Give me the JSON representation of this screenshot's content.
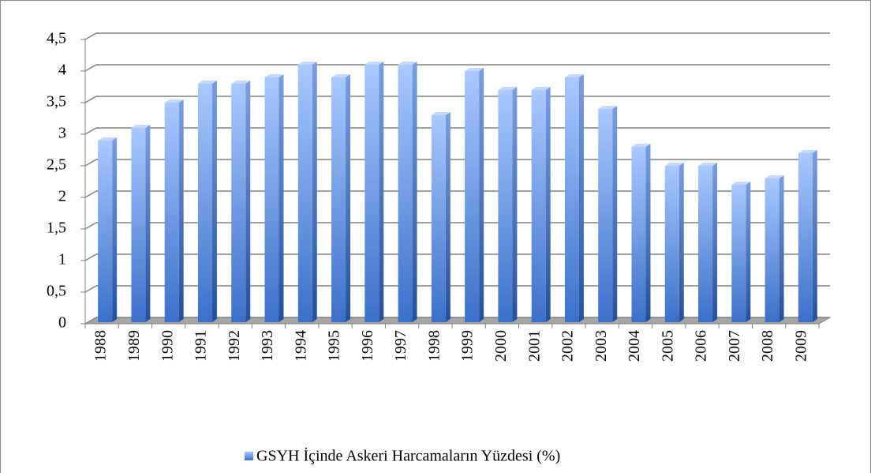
{
  "chart_data": {
    "type": "bar",
    "categories": [
      "1988",
      "1989",
      "1990",
      "1991",
      "1992",
      "1993",
      "1994",
      "1995",
      "1996",
      "1997",
      "1998",
      "1999",
      "2000",
      "2001",
      "2002",
      "2003",
      "2004",
      "2005",
      "2006",
      "2007",
      "2008",
      "2009"
    ],
    "series": [
      {
        "name": "GSYH İçinde Askeri Harcamaların Yüzdesi (%)",
        "color": "#4f86dc",
        "values": [
          2.9,
          3.1,
          3.5,
          3.8,
          3.8,
          3.9,
          4.1,
          3.9,
          4.1,
          4.1,
          3.3,
          4.0,
          3.7,
          3.7,
          3.9,
          3.4,
          2.8,
          2.5,
          2.5,
          2.2,
          2.3,
          2.7
        ]
      }
    ],
    "ylim": [
      0,
      4.5
    ],
    "yticks": [
      0,
      {
        "value": 0.5,
        "label": "0,5"
      },
      1,
      {
        "value": 1.5,
        "label": "1,5"
      },
      2,
      {
        "value": 2.5,
        "label": "2,5"
      },
      3,
      {
        "value": 3.5,
        "label": "3,5"
      },
      4,
      {
        "value": 4.5,
        "label": "4,5"
      }
    ],
    "grid": true,
    "legend": "bottom"
  }
}
